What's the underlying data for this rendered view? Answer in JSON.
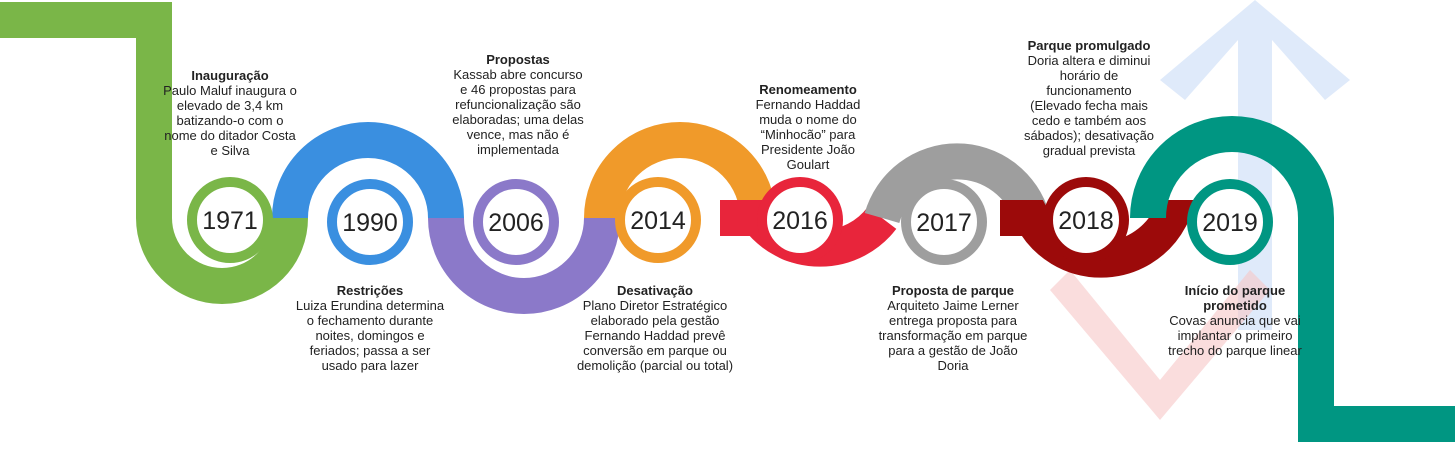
{
  "colors": {
    "c1971": "#7ab648",
    "c1990": "#3a8fe0",
    "c2006": "#8b79c9",
    "c2014": "#f09a2a",
    "c2016": "#e8253b",
    "c2017": "#9e9e9e",
    "c2018": "#9c0a0a",
    "c2019": "#009682",
    "arrowUp": "#c9dcf7",
    "arrowDown": "#f7c6c6",
    "watermark": "#ebebeb"
  },
  "events": [
    {
      "year": "1971",
      "title": "Inauguração",
      "text": "Paulo Maluf inaugura o elevado de 3,4 km batizando-o com o nome do ditador Costa e Silva"
    },
    {
      "year": "1990",
      "title": "Restrições",
      "text": "Luiza Erundina determina o fechamento durante noites, domingos e feriados; passa a ser usado para lazer"
    },
    {
      "year": "2006",
      "title": "Propostas",
      "text": "Kassab abre concurso e 46 propostas para refuncionalização são elaboradas; uma delas vence, mas não é implementada"
    },
    {
      "year": "2014",
      "title": "Desativação",
      "text": "Plano Diretor Estratégico elaborado pela gestão Fernando Haddad prevê conversão em parque ou demolição (parcial ou total)"
    },
    {
      "year": "2016",
      "title": "Renomeamento",
      "text": "Fernando Haddad muda o nome do “Minhocão” para Presidente  João Goulart"
    },
    {
      "year": "2017",
      "title": "Proposta de parque",
      "text": "Arquiteto Jaime Lerner entrega proposta para transformação em parque para a gestão de João Doria"
    },
    {
      "year": "2018",
      "title": "Parque promulgado",
      "text": "Doria altera e diminui horário de funcionamento (Elevado fecha mais cedo e também aos sábados); desativação gradual prevista"
    },
    {
      "year": "2019",
      "title": "Início do parque prometido",
      "text": "Covas anuncia que vai implantar o primeiro trecho do parque linear"
    }
  ]
}
